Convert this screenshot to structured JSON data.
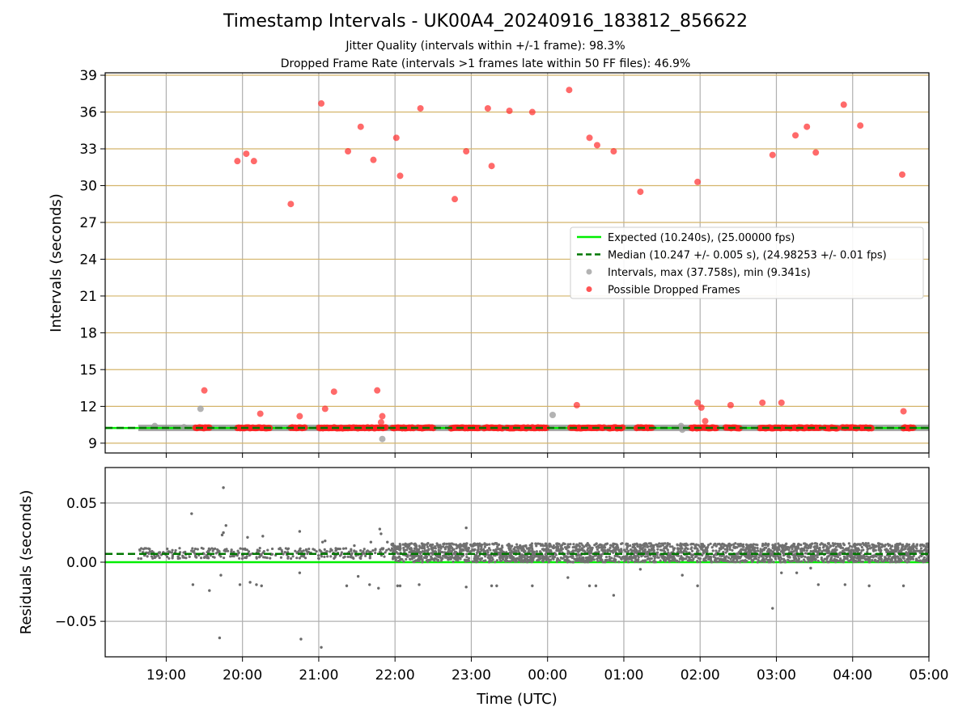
{
  "chart_data": [
    {
      "type": "scatter",
      "title": "Timestamp Intervals - UK00A4_20240916_183812_856622",
      "subtitle_lines": [
        "Jitter Quality (intervals within +/-1 frame): 98.3%",
        "Dropped Frame Rate (intervals >1 frames late within 50 FF files): 46.9%"
      ],
      "ylabel": "Intervals (seconds)",
      "ylim": [
        8.2,
        39.2
      ],
      "yticks": [
        9,
        12,
        15,
        18,
        21,
        24,
        27,
        30,
        33,
        36,
        39
      ],
      "ygrid_color": "#d4b46a",
      "expected": 10.24,
      "median": 10.247,
      "legend": [
        {
          "label": "Expected (10.240s), (25.00000 fps)",
          "kind": "line",
          "color": "#00ee00"
        },
        {
          "label": "Median (10.247 +/- 0.005 s), (24.98253 +/- 0.01 fps)",
          "kind": "dashed",
          "color": "#007700"
        },
        {
          "label": "Intervals, max (37.758s), min (9.341s)",
          "kind": "dot",
          "color": "#a0a0a0"
        },
        {
          "label": "Possible Dropped Frames",
          "kind": "dot",
          "color": "#ff2b2b"
        }
      ],
      "intervals_gray": [
        {
          "x": "19:27",
          "y": 11.8
        },
        {
          "x": "21:50",
          "y": 9.34
        },
        {
          "x": "00:04",
          "y": 11.3
        },
        {
          "x": "01:45",
          "y": 10.4
        },
        {
          "x": "01:46",
          "y": 10.1
        },
        {
          "x": "18:51",
          "y": 10.4
        },
        {
          "x": "19:14",
          "y": 10.3
        }
      ],
      "dropped_frames": [
        {
          "x": "19:30",
          "y": 13.3
        },
        {
          "x": "19:56",
          "y": 32.0
        },
        {
          "x": "20:03",
          "y": 32.6
        },
        {
          "x": "20:09",
          "y": 32.0
        },
        {
          "x": "20:14",
          "y": 11.4
        },
        {
          "x": "20:38",
          "y": 28.5
        },
        {
          "x": "20:45",
          "y": 11.2
        },
        {
          "x": "21:02",
          "y": 36.7
        },
        {
          "x": "21:05",
          "y": 11.8
        },
        {
          "x": "21:12",
          "y": 13.2
        },
        {
          "x": "21:23",
          "y": 32.8
        },
        {
          "x": "21:33",
          "y": 34.8
        },
        {
          "x": "21:43",
          "y": 32.1
        },
        {
          "x": "21:46",
          "y": 13.3
        },
        {
          "x": "21:49",
          "y": 10.7
        },
        {
          "x": "21:50",
          "y": 11.2
        },
        {
          "x": "22:01",
          "y": 33.9
        },
        {
          "x": "22:04",
          "y": 30.8
        },
        {
          "x": "22:20",
          "y": 36.3
        },
        {
          "x": "22:47",
          "y": 28.9
        },
        {
          "x": "22:56",
          "y": 32.8
        },
        {
          "x": "23:13",
          "y": 36.3
        },
        {
          "x": "23:16",
          "y": 31.6
        },
        {
          "x": "23:30",
          "y": 36.1
        },
        {
          "x": "23:48",
          "y": 36.0
        },
        {
          "x": "00:17",
          "y": 37.8
        },
        {
          "x": "00:23",
          "y": 12.1
        },
        {
          "x": "00:33",
          "y": 33.9
        },
        {
          "x": "00:39",
          "y": 33.3
        },
        {
          "x": "00:52",
          "y": 32.8
        },
        {
          "x": "01:13",
          "y": 29.5
        },
        {
          "x": "01:58",
          "y": 30.3
        },
        {
          "x": "01:58",
          "y": 12.3
        },
        {
          "x": "02:01",
          "y": 11.9
        },
        {
          "x": "02:04",
          "y": 10.8
        },
        {
          "x": "02:24",
          "y": 12.1
        },
        {
          "x": "02:49",
          "y": 12.3
        },
        {
          "x": "02:57",
          "y": 32.5
        },
        {
          "x": "03:04",
          "y": 12.3
        },
        {
          "x": "03:15",
          "y": 34.1
        },
        {
          "x": "03:24",
          "y": 34.8
        },
        {
          "x": "03:31",
          "y": 32.7
        },
        {
          "x": "03:53",
          "y": 36.6
        },
        {
          "x": "04:06",
          "y": 34.9
        },
        {
          "x": "04:39",
          "y": 30.9
        },
        {
          "x": "04:40",
          "y": 11.6
        }
      ],
      "dropped_baseline_segments": [
        [
          "19:23",
          "19:35"
        ],
        [
          "19:56",
          "20:22"
        ],
        [
          "20:38",
          "20:50"
        ],
        [
          "21:00",
          "21:22"
        ],
        [
          "21:23",
          "21:53"
        ],
        [
          "21:58",
          "22:15"
        ],
        [
          "22:18",
          "22:31"
        ],
        [
          "22:44",
          "23:06"
        ],
        [
          "23:10",
          "23:25"
        ],
        [
          "23:28",
          "23:45"
        ],
        [
          "23:47",
          "24:00"
        ],
        [
          "24:18",
          "24:45"
        ],
        [
          "24:48",
          "25:00"
        ],
        [
          "25:10",
          "25:23"
        ],
        [
          "25:53",
          "26:13"
        ],
        [
          "26:20",
          "26:32"
        ],
        [
          "26:47",
          "27:08"
        ],
        [
          "27:10",
          "27:35"
        ],
        [
          "27:38",
          "27:48"
        ],
        [
          "27:52",
          "28:03"
        ],
        [
          "28:06",
          "28:15"
        ],
        [
          "28:40",
          "28:48"
        ]
      ]
    },
    {
      "type": "scatter",
      "ylabel": "Residuals (seconds)",
      "xlabel": "Time (UTC)",
      "ylim": [
        -0.08,
        0.08
      ],
      "yticks": [
        0.05,
        0.0,
        -0.05
      ],
      "ytick_labels": [
        "0.05",
        "0.00",
        "−0.05"
      ],
      "xlim": [
        "18:12",
        "29:00"
      ],
      "xticks": [
        "19:00",
        "20:00",
        "21:00",
        "22:00",
        "23:00",
        "00:00",
        "01:00",
        "02:00",
        "03:00",
        "04:00",
        "05:00"
      ],
      "expected_residual": 0.0,
      "median_residual": 0.007,
      "dense_band": {
        "from": "21:57",
        "to": "29:00",
        "ymin": 0.0,
        "ymax": 0.016
      },
      "sparse_band": {
        "from": "18:38",
        "to": "21:57",
        "ymin": 0.003,
        "ymax": 0.012
      },
      "outliers": [
        {
          "x": "19:20",
          "y": 0.041
        },
        {
          "x": "19:21",
          "y": -0.019
        },
        {
          "x": "19:34",
          "y": -0.024
        },
        {
          "x": "19:42",
          "y": -0.064
        },
        {
          "x": "19:43",
          "y": -0.011
        },
        {
          "x": "19:44",
          "y": 0.023
        },
        {
          "x": "19:45",
          "y": 0.063
        },
        {
          "x": "19:47",
          "y": 0.031
        },
        {
          "x": "19:45",
          "y": 0.025
        },
        {
          "x": "19:58",
          "y": -0.019
        },
        {
          "x": "20:04",
          "y": 0.021
        },
        {
          "x": "20:06",
          "y": -0.017
        },
        {
          "x": "20:11",
          "y": -0.019
        },
        {
          "x": "20:15",
          "y": -0.02
        },
        {
          "x": "20:16",
          "y": 0.022
        },
        {
          "x": "20:45",
          "y": 0.026
        },
        {
          "x": "20:45",
          "y": -0.009
        },
        {
          "x": "20:46",
          "y": -0.065
        },
        {
          "x": "21:02",
          "y": -0.072
        },
        {
          "x": "21:03",
          "y": 0.017
        },
        {
          "x": "21:05",
          "y": 0.018
        },
        {
          "x": "21:22",
          "y": -0.02
        },
        {
          "x": "21:28",
          "y": 0.014
        },
        {
          "x": "21:31",
          "y": -0.012
        },
        {
          "x": "21:40",
          "y": -0.019
        },
        {
          "x": "21:41",
          "y": 0.017
        },
        {
          "x": "21:47",
          "y": -0.022
        },
        {
          "x": "21:48",
          "y": 0.028
        },
        {
          "x": "21:49",
          "y": 0.024
        },
        {
          "x": "21:54",
          "y": 0.017
        },
        {
          "x": "22:02",
          "y": -0.02
        },
        {
          "x": "22:04",
          "y": -0.02
        },
        {
          "x": "22:19",
          "y": -0.019
        },
        {
          "x": "22:56",
          "y": 0.029
        },
        {
          "x": "22:56",
          "y": -0.021
        },
        {
          "x": "23:16",
          "y": -0.02
        },
        {
          "x": "23:20",
          "y": -0.02
        },
        {
          "x": "23:48",
          "y": -0.02
        },
        {
          "x": "24:16",
          "y": -0.013
        },
        {
          "x": "24:33",
          "y": -0.02
        },
        {
          "x": "24:38",
          "y": -0.02
        },
        {
          "x": "24:52",
          "y": -0.028
        },
        {
          "x": "25:13",
          "y": -0.006
        },
        {
          "x": "25:46",
          "y": -0.011
        },
        {
          "x": "25:58",
          "y": -0.02
        },
        {
          "x": "26:57",
          "y": -0.039
        },
        {
          "x": "27:04",
          "y": -0.009
        },
        {
          "x": "27:16",
          "y": -0.009
        },
        {
          "x": "27:27",
          "y": -0.005
        },
        {
          "x": "27:33",
          "y": -0.019
        },
        {
          "x": "27:54",
          "y": -0.019
        },
        {
          "x": "28:13",
          "y": -0.02
        },
        {
          "x": "28:40",
          "y": -0.02
        }
      ]
    }
  ]
}
